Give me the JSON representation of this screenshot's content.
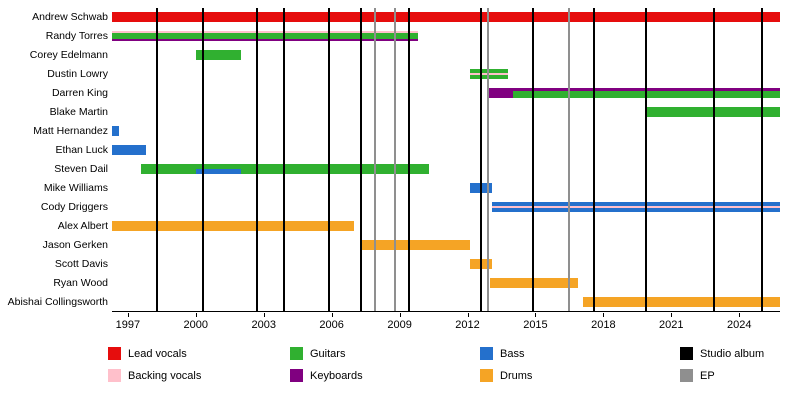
{
  "chart_data": {
    "type": "timeline",
    "title": "",
    "x_range": [
      1996.3,
      2025.8
    ],
    "x_ticks": [
      1997,
      2000,
      2003,
      2006,
      2009,
      2012,
      2015,
      2018,
      2021,
      2024
    ],
    "colors": {
      "lead_vocals": "#e60d0d",
      "backing_vocals": "#ffc0cb",
      "guitars": "#30b030",
      "keyboards": "#800080",
      "bass": "#2470cc",
      "drums": "#f5a425",
      "studio_album": "#000000",
      "ep": "#8f8f8f"
    },
    "members": [
      {
        "name": "Andrew Schwab",
        "segments": [
          {
            "start": 1996.3,
            "end": 2025.8,
            "parts": [
              "lead_vocals"
            ]
          }
        ]
      },
      {
        "name": "Randy Torres",
        "segments": [
          {
            "start": 1996.3,
            "end": 2009.8,
            "parts": [
              "backing_vocals",
              "guitars",
              "keyboards"
            ],
            "weights": [
              1,
              3,
              1
            ]
          }
        ]
      },
      {
        "name": "Corey Edelmann",
        "segments": [
          {
            "start": 2000.0,
            "end": 2002.0,
            "parts": [
              "guitars"
            ]
          }
        ]
      },
      {
        "name": "Dustin Lowry",
        "segments": [
          {
            "start": 2012.1,
            "end": 2013.8,
            "parts": [
              "guitars",
              "backing_vocals",
              "guitars"
            ],
            "weights": [
              2,
              1,
              2
            ]
          }
        ]
      },
      {
        "name": "Darren King",
        "segments": [
          {
            "start": 2012.9,
            "end": 2014.0,
            "parts": [
              "keyboards"
            ]
          },
          {
            "start": 2014.0,
            "end": 2025.8,
            "parts": [
              "keyboards",
              "guitars"
            ],
            "weights": [
              1,
              3
            ]
          }
        ]
      },
      {
        "name": "Blake Martin",
        "segments": [
          {
            "start": 2019.9,
            "end": 2025.8,
            "parts": [
              "guitars"
            ]
          }
        ]
      },
      {
        "name": "Matt Hernandez",
        "segments": [
          {
            "start": 1996.3,
            "end": 1996.6,
            "parts": [
              "bass"
            ]
          }
        ]
      },
      {
        "name": "Ethan Luck",
        "segments": [
          {
            "start": 1996.3,
            "end": 1997.8,
            "parts": [
              "bass"
            ]
          }
        ]
      },
      {
        "name": "Steven Dail",
        "segments": [
          {
            "start": 1997.6,
            "end": 2000.0,
            "parts": [
              "guitars"
            ]
          },
          {
            "start": 2000.0,
            "end": 2002.0,
            "parts": [
              "guitars",
              "bass"
            ],
            "weights": [
              1,
              1
            ]
          },
          {
            "start": 2002.0,
            "end": 2010.3,
            "parts": [
              "guitars"
            ]
          }
        ]
      },
      {
        "name": "Mike Williams",
        "segments": [
          {
            "start": 2012.1,
            "end": 2013.1,
            "parts": [
              "bass"
            ]
          }
        ]
      },
      {
        "name": "Cody Driggers",
        "segments": [
          {
            "start": 2013.1,
            "end": 2025.8,
            "parts": [
              "bass",
              "backing_vocals",
              "bass"
            ],
            "weights": [
              2,
              1,
              2
            ]
          }
        ]
      },
      {
        "name": "Alex Albert",
        "segments": [
          {
            "start": 1996.3,
            "end": 2007.0,
            "parts": [
              "drums"
            ]
          }
        ]
      },
      {
        "name": "Jason Gerken",
        "segments": [
          {
            "start": 2007.3,
            "end": 2012.1,
            "parts": [
              "drums"
            ]
          }
        ]
      },
      {
        "name": "Scott Davis",
        "segments": [
          {
            "start": 2012.1,
            "end": 2013.1,
            "parts": [
              "drums"
            ]
          }
        ]
      },
      {
        "name": "Ryan Wood",
        "segments": [
          {
            "start": 2013.0,
            "end": 2016.9,
            "parts": [
              "drums"
            ]
          }
        ]
      },
      {
        "name": "Abishai Collingsworth",
        "segments": [
          {
            "start": 2017.1,
            "end": 2025.8,
            "parts": [
              "drums"
            ]
          }
        ]
      }
    ],
    "album_years": [
      1998.3,
      2000.3,
      2002.7,
      2003.9,
      2005.9,
      2007.3,
      2009.4,
      2012.6,
      2014.9,
      2017.6,
      2019.9,
      2022.9,
      2025.0
    ],
    "ep_years": [
      2007.9,
      2008.8,
      2012.9,
      2016.5
    ],
    "legend_columns": [
      [
        {
          "label": "Lead vocals",
          "role": "lead_vocals"
        },
        {
          "label": "Backing vocals",
          "role": "backing_vocals"
        }
      ],
      [
        {
          "label": "Guitars",
          "role": "guitars"
        },
        {
          "label": "Keyboards",
          "role": "keyboards"
        }
      ],
      [
        {
          "label": "Bass",
          "role": "bass"
        },
        {
          "label": "Drums",
          "role": "drums"
        }
      ],
      [
        {
          "label": "Studio album",
          "role": "studio_album"
        },
        {
          "label": "EP",
          "role": "ep"
        }
      ]
    ],
    "legend_position": "bottom",
    "grid": "vertical-event-lines"
  }
}
